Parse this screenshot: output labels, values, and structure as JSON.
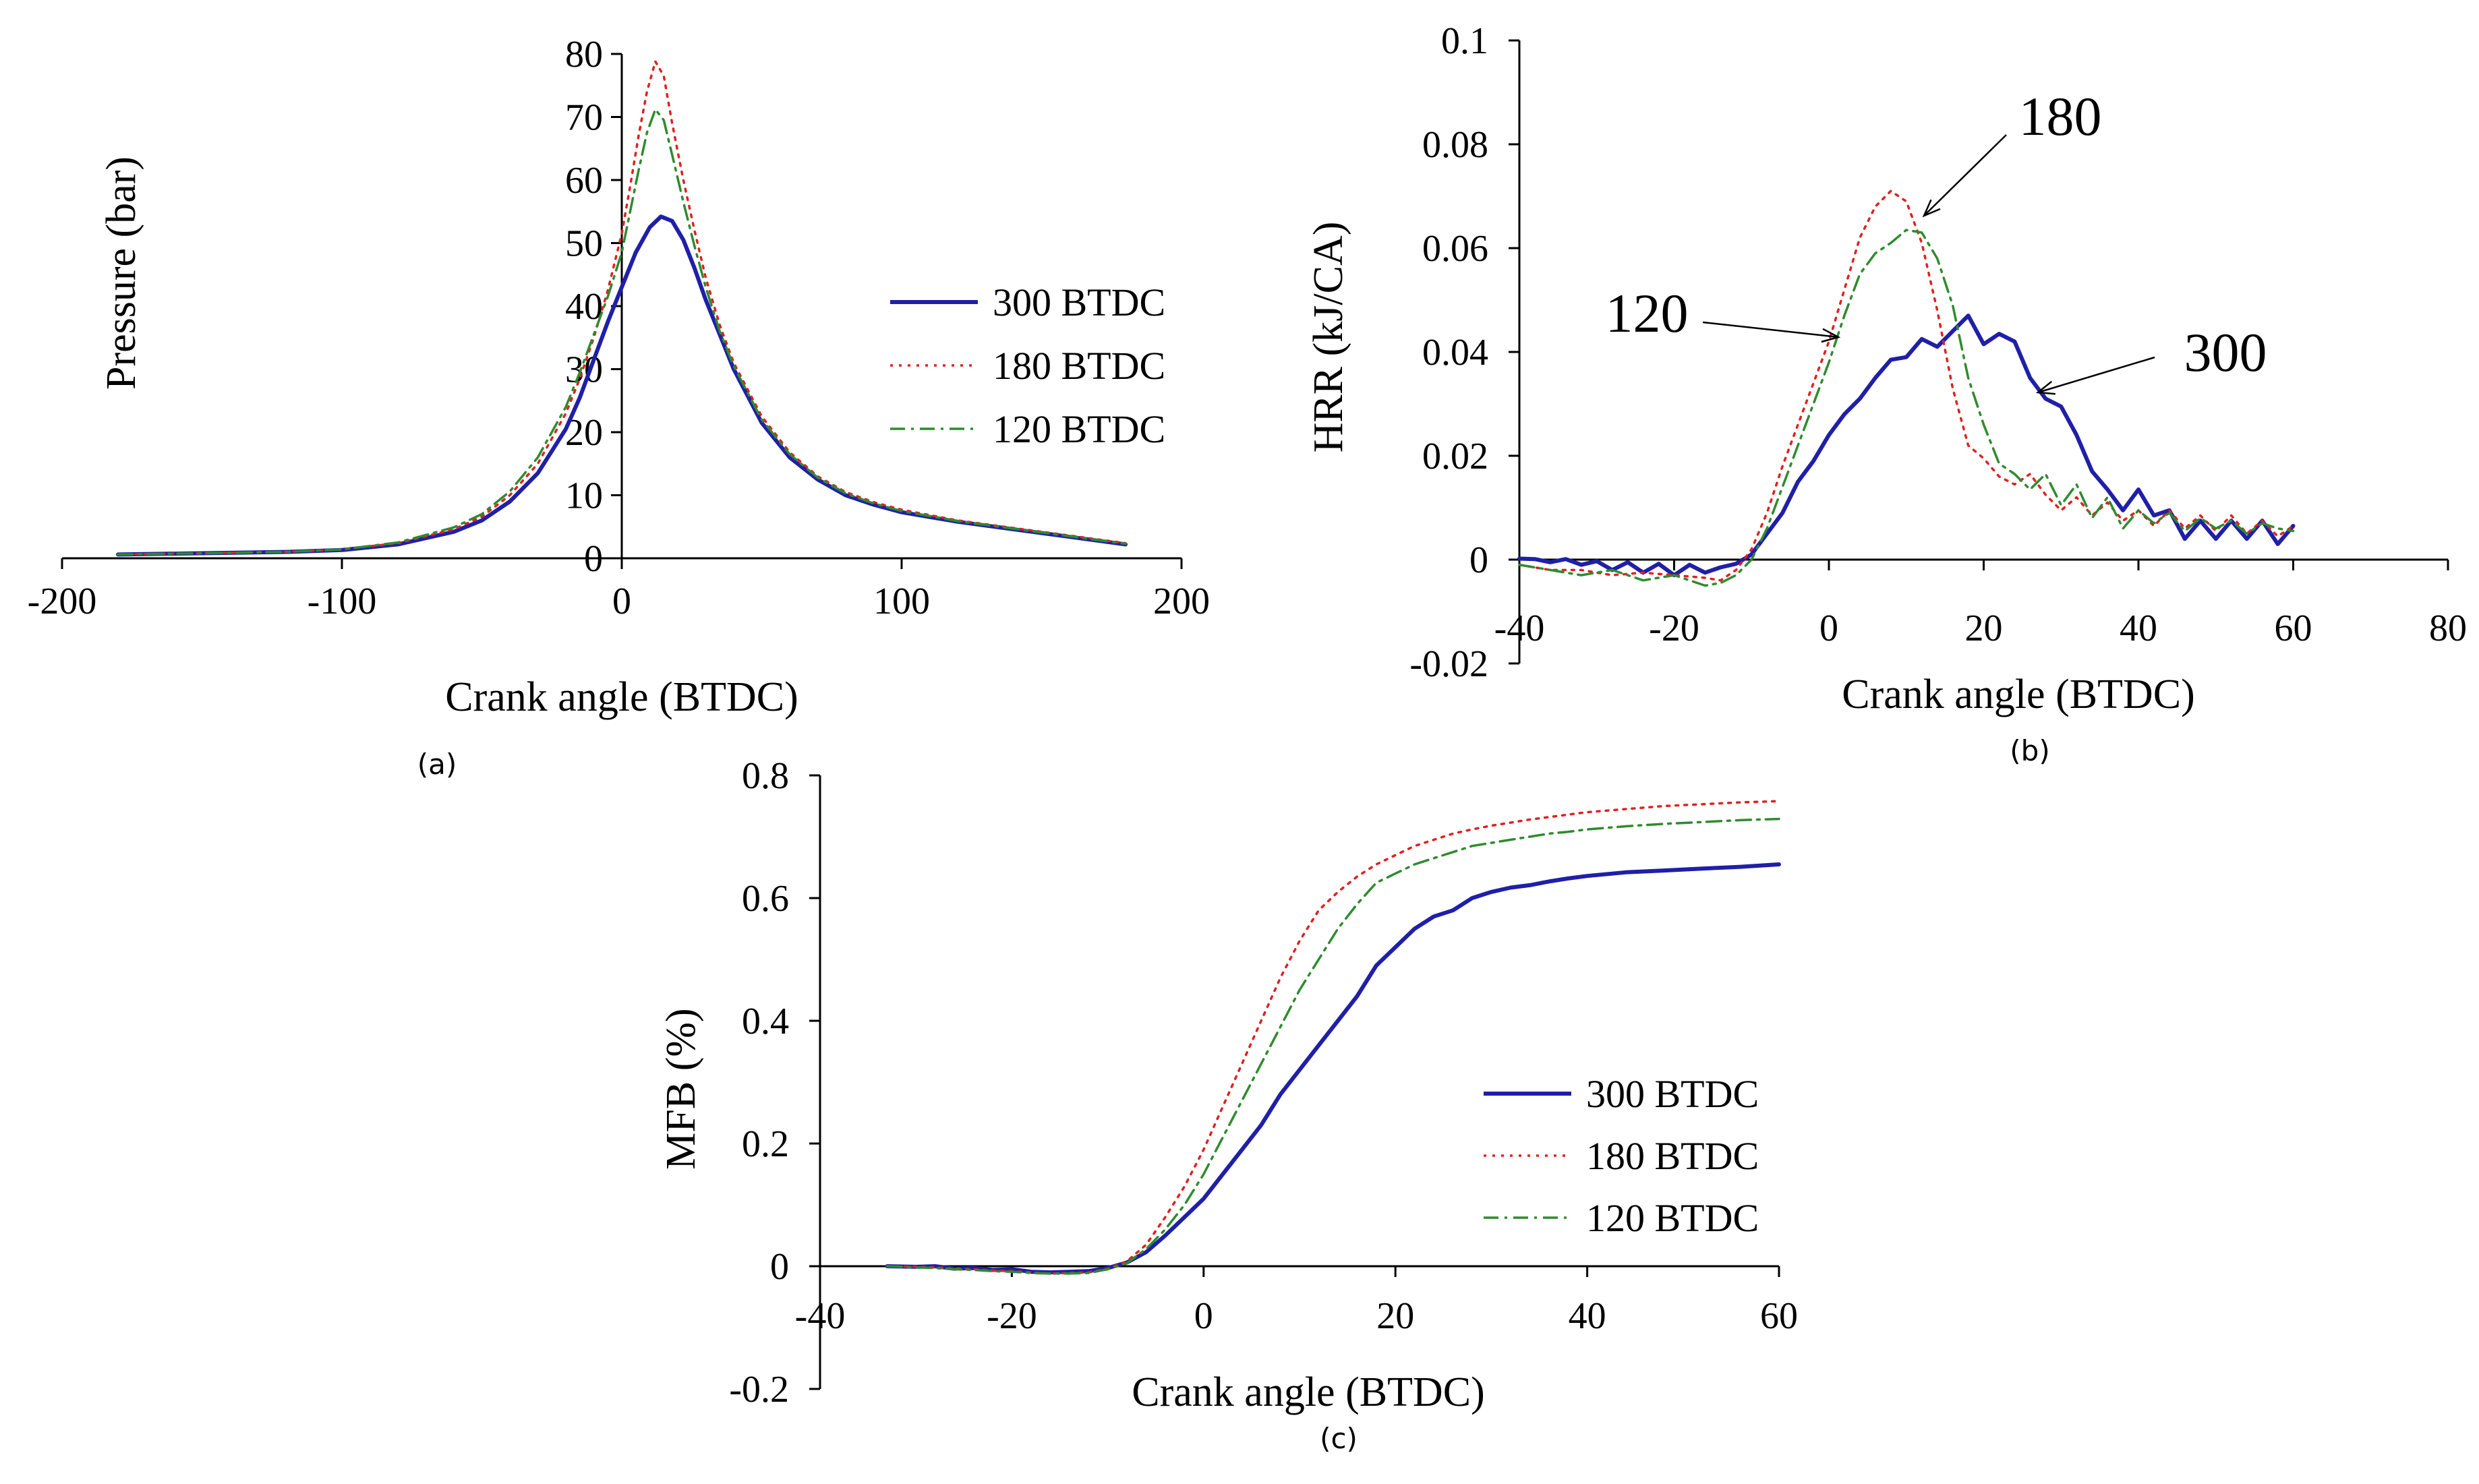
{
  "chart_data": [
    {
      "id": "a",
      "panel_label": "(a)",
      "type": "line",
      "title": "",
      "xlabel": "Crank angle (BTDC)",
      "ylabel": "Pressure (bar)",
      "xlim": [
        -200,
        200
      ],
      "ylim": [
        0,
        80
      ],
      "xticks": [
        -200,
        -100,
        0,
        100,
        200
      ],
      "yticks": [
        0,
        10,
        20,
        30,
        40,
        50,
        60,
        70,
        80
      ],
      "legend": "center-right",
      "annotations": [],
      "series": [
        {
          "name": "300 BTDC",
          "color": "#1f1fa8",
          "dash": "solid",
          "x": [
            -180,
            -150,
            -120,
            -100,
            -80,
            -60,
            -50,
            -40,
            -30,
            -20,
            -15,
            -10,
            -5,
            0,
            5,
            10,
            14,
            18,
            22,
            26,
            30,
            35,
            40,
            50,
            60,
            70,
            80,
            90,
            100,
            120,
            140,
            160,
            170,
            180
          ],
          "y": [
            0.6,
            0.8,
            1.0,
            1.3,
            2.2,
            4.2,
            6.0,
            9.0,
            13.5,
            20.5,
            25.5,
            31.5,
            37.5,
            43,
            48.5,
            52.5,
            54.2,
            53.5,
            50.5,
            46,
            41,
            35.5,
            30,
            21.5,
            16,
            12.5,
            10,
            8.5,
            7.3,
            5.8,
            4.6,
            3.4,
            2.8,
            2.2
          ]
        },
        {
          "name": "180 BTDC",
          "color": "#e02020",
          "dash": "dot",
          "x": [
            -180,
            -150,
            -120,
            -100,
            -80,
            -60,
            -50,
            -40,
            -30,
            -20,
            -15,
            -10,
            -5,
            0,
            3,
            6,
            9,
            12,
            15,
            18,
            22,
            26,
            30,
            35,
            40,
            50,
            60,
            70,
            80,
            90,
            100,
            120,
            140,
            160,
            170,
            180
          ],
          "y": [
            0.6,
            0.8,
            1.0,
            1.4,
            2.4,
            4.6,
            6.6,
            10,
            15,
            23,
            28.5,
            35,
            42.5,
            51.5,
            59,
            67,
            74,
            78.8,
            76.5,
            69,
            60,
            52,
            44.5,
            37,
            31,
            22.5,
            16.8,
            13,
            10.5,
            8.9,
            7.7,
            6,
            4.8,
            3.6,
            3,
            2.4
          ]
        },
        {
          "name": "120 BTDC",
          "color": "#2e8b2e",
          "dash": "dashdot",
          "x": [
            -180,
            -150,
            -120,
            -100,
            -80,
            -60,
            -50,
            -40,
            -30,
            -20,
            -15,
            -10,
            -5,
            0,
            3,
            6,
            9,
            12,
            15,
            18,
            22,
            26,
            30,
            35,
            40,
            50,
            60,
            70,
            80,
            90,
            100,
            120,
            140,
            160,
            170,
            180
          ],
          "y": [
            0.6,
            0.8,
            1.0,
            1.4,
            2.5,
            4.9,
            7.0,
            10.6,
            16,
            24,
            29.5,
            35.5,
            41.5,
            48.5,
            55,
            61.5,
            67.5,
            71.2,
            69.5,
            64,
            56.5,
            49.5,
            43,
            36,
            30.5,
            22,
            16.5,
            12.8,
            10.3,
            8.7,
            7.5,
            5.9,
            4.7,
            3.5,
            2.9,
            2.3
          ]
        }
      ]
    },
    {
      "id": "b",
      "panel_label": "(b)",
      "type": "line",
      "title": "",
      "xlabel": "Crank angle (BTDC)",
      "ylabel": "HRR (kJ/CA)",
      "xlim": [
        -40,
        80
      ],
      "ylim": [
        -0.02,
        0.1
      ],
      "xticks": [
        -40,
        -20,
        0,
        20,
        40,
        60,
        80
      ],
      "xtick_labels": [
        "-40",
        "-20",
        "0",
        "20",
        "40",
        "60",
        "80"
      ],
      "yticks": [
        -0.02,
        0,
        0.02,
        0.04,
        0.06,
        0.08,
        0.1
      ],
      "ytick_labels": [
        "-0.02",
        "0",
        "0.02",
        "0.04",
        "0.06",
        "0.08",
        "0.1"
      ],
      "legend": "none",
      "annotations": [
        {
          "text": "180",
          "target_series": "180 BTDC",
          "x": 12,
          "y": 0.0658
        },
        {
          "text": "120",
          "target_series": "120 BTDC",
          "x": 0.5,
          "y": 0.0435
        },
        {
          "text": "300",
          "target_series": "300 BTDC",
          "x": 27,
          "y": 0.0315
        }
      ],
      "series": [
        {
          "name": "300 BTDC",
          "color": "#1f1fa8",
          "dash": "solid",
          "x": [
            -40,
            -38,
            -36,
            -34,
            -32,
            -30,
            -28,
            -26,
            -24,
            -22,
            -20,
            -18,
            -16,
            -14,
            -12,
            -10,
            -8,
            -6,
            -4,
            -2,
            0,
            2,
            4,
            6,
            8,
            10,
            12,
            14,
            16,
            18,
            20,
            22,
            24,
            26,
            28,
            30,
            32,
            34,
            36,
            38,
            40,
            42,
            44,
            46,
            48,
            50,
            52,
            54,
            56,
            58,
            60
          ],
          "y": [
            0.0002,
            0.0001,
            -0.0005,
            0.0001,
            -0.001,
            -0.0003,
            -0.002,
            -0.0005,
            -0.0025,
            -0.0008,
            -0.003,
            -0.001,
            -0.0025,
            -0.0015,
            -0.0008,
            0.001,
            0.005,
            0.009,
            0.015,
            0.019,
            0.024,
            0.028,
            0.031,
            0.035,
            0.0385,
            0.039,
            0.0425,
            0.041,
            0.044,
            0.047,
            0.0415,
            0.0435,
            0.042,
            0.035,
            0.031,
            0.0295,
            0.024,
            0.017,
            0.0135,
            0.0095,
            0.0135,
            0.0085,
            0.0095,
            0.004,
            0.0075,
            0.004,
            0.0075,
            0.004,
            0.0075,
            0.003,
            0.0065
          ]
        },
        {
          "name": "180 BTDC",
          "color": "#e02020",
          "dash": "dot",
          "x": [
            -40,
            -36,
            -32,
            -28,
            -24,
            -20,
            -16,
            -14,
            -12,
            -10,
            -8,
            -6,
            -4,
            -2,
            0,
            2,
            4,
            6,
            8,
            10,
            12,
            14,
            16,
            18,
            20,
            22,
            24,
            26,
            28,
            30,
            32,
            34,
            36,
            38,
            40,
            42,
            44,
            46,
            48,
            50,
            52,
            54,
            56,
            58,
            60
          ],
          "y": [
            -0.001,
            -0.002,
            -0.002,
            -0.003,
            -0.0025,
            -0.003,
            -0.0035,
            -0.004,
            -0.002,
            0.002,
            0.009,
            0.018,
            0.026,
            0.034,
            0.042,
            0.052,
            0.062,
            0.068,
            0.071,
            0.069,
            0.061,
            0.048,
            0.033,
            0.022,
            0.0195,
            0.016,
            0.0145,
            0.0165,
            0.0125,
            0.0095,
            0.012,
            0.0085,
            0.011,
            0.0075,
            0.0095,
            0.0065,
            0.0095,
            0.006,
            0.0085,
            0.0055,
            0.0085,
            0.005,
            0.0075,
            0.0045,
            0.0065
          ]
        },
        {
          "name": "120 BTDC",
          "color": "#2e8b2e",
          "dash": "dashdot",
          "x": [
            -40,
            -36,
            -32,
            -28,
            -24,
            -20,
            -16,
            -14,
            -12,
            -10,
            -8,
            -6,
            -4,
            -2,
            0,
            2,
            4,
            6,
            8,
            10,
            12,
            14,
            16,
            18,
            20,
            22,
            24,
            26,
            28,
            30,
            32,
            34,
            36,
            38,
            40,
            42,
            44,
            46,
            48,
            50,
            52,
            54,
            56,
            58,
            60
          ],
          "y": [
            -0.001,
            -0.002,
            -0.003,
            -0.002,
            -0.004,
            -0.003,
            -0.005,
            -0.0045,
            -0.003,
            0.0,
            0.006,
            0.014,
            0.022,
            0.03,
            0.038,
            0.047,
            0.055,
            0.059,
            0.061,
            0.0635,
            0.063,
            0.058,
            0.049,
            0.035,
            0.026,
            0.0185,
            0.0165,
            0.0135,
            0.0165,
            0.0105,
            0.0145,
            0.008,
            0.012,
            0.006,
            0.0095,
            0.007,
            0.009,
            0.0055,
            0.008,
            0.006,
            0.0075,
            0.005,
            0.007,
            0.006,
            0.0055
          ]
        }
      ]
    },
    {
      "id": "c",
      "panel_label": "(c)",
      "type": "line",
      "title": "",
      "xlabel": "Crank angle (BTDC)",
      "ylabel": "MFB (%)",
      "xlim": [
        -40,
        60
      ],
      "ylim": [
        -0.2,
        0.8
      ],
      "xticks": [
        -40,
        -20,
        0,
        20,
        40,
        60
      ],
      "xtick_labels": [
        "-40",
        "-20",
        "0",
        "20",
        "40",
        "60"
      ],
      "yticks": [
        -0.2,
        0,
        0.2,
        0.4,
        0.6,
        0.8
      ],
      "ytick_labels": [
        "-0.2",
        "0",
        "0.2",
        "0.4",
        "0.6",
        "0.8"
      ],
      "legend": "center-right",
      "annotations": [],
      "series": [
        {
          "name": "300 BTDC",
          "color": "#1f1fa8",
          "dash": "solid",
          "x": [
            -33,
            -30,
            -28,
            -26,
            -24,
            -22,
            -20,
            -18,
            -16,
            -14,
            -12,
            -10,
            -8,
            -6,
            -4,
            -2,
            0,
            2,
            4,
            6,
            8,
            10,
            12,
            14,
            16,
            18,
            20,
            22,
            24,
            26,
            28,
            30,
            32,
            34,
            36,
            38,
            40,
            44,
            48,
            52,
            56,
            60
          ],
          "y": [
            0.0,
            -0.001,
            0.0,
            -0.004,
            -0.003,
            -0.006,
            -0.005,
            -0.009,
            -0.01,
            -0.009,
            -0.008,
            -0.003,
            0.006,
            0.023,
            0.05,
            0.08,
            0.11,
            0.15,
            0.19,
            0.23,
            0.28,
            0.32,
            0.36,
            0.4,
            0.44,
            0.49,
            0.52,
            0.55,
            0.57,
            0.58,
            0.6,
            0.61,
            0.617,
            0.621,
            0.627,
            0.632,
            0.636,
            0.642,
            0.645,
            0.648,
            0.651,
            0.655
          ]
        },
        {
          "name": "180 BTDC",
          "color": "#e02020",
          "dash": "dot",
          "x": [
            -33,
            -30,
            -28,
            -26,
            -24,
            -22,
            -20,
            -18,
            -16,
            -14,
            -12,
            -10,
            -8,
            -6,
            -4,
            -2,
            0,
            2,
            4,
            6,
            8,
            10,
            12,
            14,
            16,
            18,
            20,
            22,
            24,
            26,
            28,
            30,
            32,
            34,
            36,
            38,
            40,
            44,
            48,
            52,
            56,
            60
          ],
          "y": [
            0.0,
            -0.001,
            -0.002,
            -0.004,
            -0.005,
            -0.007,
            -0.008,
            -0.01,
            -0.012,
            -0.011,
            -0.01,
            -0.004,
            0.008,
            0.035,
            0.08,
            0.13,
            0.19,
            0.26,
            0.33,
            0.4,
            0.47,
            0.53,
            0.58,
            0.61,
            0.635,
            0.655,
            0.67,
            0.685,
            0.695,
            0.705,
            0.712,
            0.718,
            0.723,
            0.728,
            0.732,
            0.736,
            0.74,
            0.745,
            0.75,
            0.753,
            0.756,
            0.758
          ]
        },
        {
          "name": "120 BTDC",
          "color": "#2e8b2e",
          "dash": "dashdot",
          "x": [
            -33,
            -30,
            -28,
            -26,
            -24,
            -22,
            -20,
            -18,
            -16,
            -14,
            -12,
            -10,
            -8,
            -6,
            -4,
            -2,
            0,
            2,
            4,
            6,
            8,
            10,
            12,
            14,
            16,
            18,
            20,
            22,
            24,
            26,
            28,
            30,
            32,
            34,
            36,
            38,
            40,
            44,
            48,
            52,
            56,
            60
          ],
          "y": [
            0.0,
            -0.002,
            -0.003,
            -0.005,
            -0.006,
            -0.008,
            -0.009,
            -0.011,
            -0.012,
            -0.012,
            -0.011,
            -0.005,
            0.005,
            0.028,
            0.06,
            0.1,
            0.15,
            0.21,
            0.27,
            0.33,
            0.39,
            0.45,
            0.5,
            0.55,
            0.59,
            0.625,
            0.64,
            0.655,
            0.665,
            0.675,
            0.685,
            0.69,
            0.695,
            0.7,
            0.705,
            0.708,
            0.712,
            0.717,
            0.721,
            0.724,
            0.727,
            0.729
          ]
        }
      ]
    }
  ]
}
